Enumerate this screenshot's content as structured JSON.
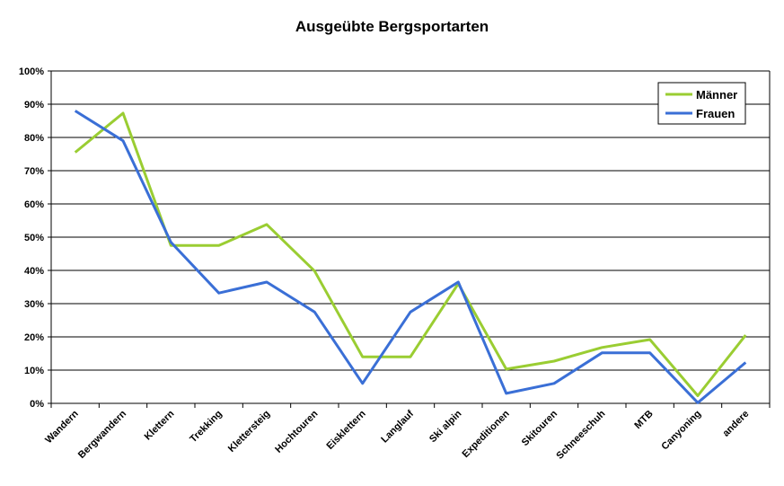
{
  "chart_data": {
    "type": "line",
    "title": "Ausgeübte Bergsportarten",
    "xlabel": "",
    "ylabel": "",
    "ylim": [
      0,
      100
    ],
    "y_ticks": [
      "0%",
      "10%",
      "20%",
      "30%",
      "40%",
      "50%",
      "60%",
      "70%",
      "80%",
      "90%",
      "100%"
    ],
    "grid": true,
    "legend_position": "top-right",
    "categories": [
      "Wandern",
      "Bergwandern",
      "Klettern",
      "Trekking",
      "Klettersteig",
      "Hochtouren",
      "Eisklettern",
      "Langlauf",
      "Ski alpin",
      "Expeditionen",
      "Skitouren",
      "Schneeschuh",
      "MTB",
      "Canyoning",
      "andere"
    ],
    "series": [
      {
        "name": "Männer",
        "color": "#9ACD32",
        "values": [
          75.5,
          87.3,
          47.5,
          47.5,
          53.8,
          39.8,
          14.0,
          14.0,
          36.0,
          10.3,
          12.7,
          16.8,
          19.2,
          2.3,
          20.5
        ]
      },
      {
        "name": "Frauen",
        "color": "#3A6FD6",
        "values": [
          88.0,
          79.0,
          48.5,
          33.2,
          36.5,
          27.5,
          6.0,
          27.5,
          36.5,
          3.0,
          6.0,
          15.2,
          15.2,
          0.2,
          12.3
        ]
      }
    ]
  }
}
